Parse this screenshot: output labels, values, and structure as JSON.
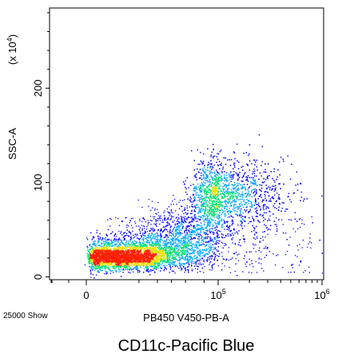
{
  "chart_data": {
    "type": "scatter",
    "style": "density-dot-plot",
    "title": "CD11c-Pacific Blue",
    "xlabel": "PB450 V450-PB-A",
    "ylabel": "SSC-A",
    "y_multiplier_label": "(x 10",
    "y_multiplier_exp": "4",
    "y_multiplier_close": ")",
    "event_count_label": "25000 Show",
    "x_scale": "biexponential",
    "x_ticks": [
      {
        "value": 0,
        "label": "0",
        "exp": ""
      },
      {
        "value": 100000,
        "label": "10",
        "exp": "5"
      },
      {
        "value": 1000000,
        "label": "10",
        "exp": "6"
      }
    ],
    "y_ticks": [
      {
        "value": 0,
        "label": "0"
      },
      {
        "value": 100,
        "label": "100"
      },
      {
        "value": 200,
        "label": "200"
      }
    ],
    "ylim": [
      -3,
      285
    ],
    "populations": [
      {
        "name": "",
        "x_center": 800,
        "y_center": 20,
        "x_spread": 0.55,
        "y_spread": 6,
        "count": 3200
      },
      {
        "name": "",
        "x_center": 3000,
        "y_center": 25,
        "x_spread": 0.8,
        "y_spread": 9,
        "count": 2600
      },
      {
        "name": "",
        "x_center": 110000,
        "y_center": 85,
        "x_spread": 0.3,
        "y_spread": 20,
        "count": 3600
      },
      {
        "name": "",
        "x_center": 20000,
        "y_center": 45,
        "x_spread": 0.5,
        "y_spread": 15,
        "count": 900
      }
    ],
    "colors": {
      "low": "#0000ff",
      "mid_low": "#00a8ff",
      "mid": "#00e070",
      "mid_high": "#e8e000",
      "high": "#ff2000"
    },
    "grid": false
  }
}
